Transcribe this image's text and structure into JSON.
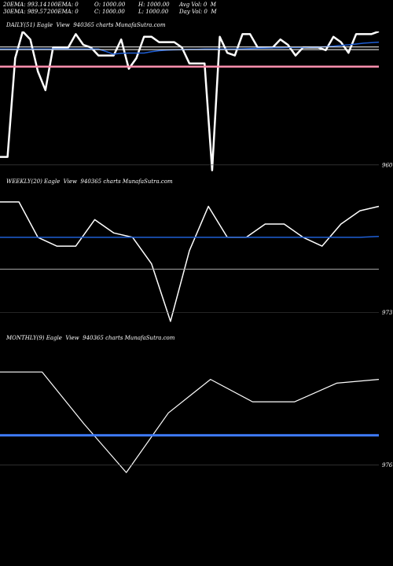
{
  "header": {
    "ema20": "20EMA: 993.14",
    "ema100": "100EMA: 0",
    "open": "O: 1000.00",
    "high": "H: 1000.00",
    "avgvol": "Avg Vol: 0  M",
    "ema30": "30EMA: 989.57",
    "ema200": "200EMA: 0",
    "close": "C: 1000.00",
    "low": "L: 1000.00",
    "dayvol": "Day Vol: 0  M"
  },
  "chart_data": [
    {
      "type": "line",
      "title": "DAILY(51) Eagle  View  940365 charts MunafaSutra.com",
      "ylim": [
        957,
        1010
      ],
      "y_tick_label": "960",
      "y_tick_value": 960,
      "series": [
        {
          "color": "#ffffff",
          "values": [
            963,
            963,
            1000,
            1010,
            1007,
            995,
            988,
            1004,
            1004,
            1004,
            1009,
            1005,
            1004,
            1001,
            1001,
            1001,
            1007,
            996,
            1000,
            1008,
            1008,
            1006,
            1006,
            1006,
            1004,
            998,
            998,
            998,
            958,
            1008,
            1002,
            1001,
            1009,
            1009,
            1004,
            1004,
            1004,
            1007,
            1005,
            1001,
            1004,
            1004,
            1004,
            1003,
            1008,
            1006,
            1002,
            1009,
            1009,
            1009,
            1010
          ]
        },
        {
          "color": "#1f5fd6",
          "values": [
            1003.4,
            1003.4,
            1003.4,
            1003.4,
            1003.4,
            1003.4,
            1003.4,
            1003.4,
            1003.4,
            1003.4,
            1003.4,
            1003.4,
            1003.4,
            1003.4,
            1002.5,
            1001.5,
            1001.8,
            1001.9,
            1001.9,
            1001.9,
            1002.4,
            1002.8,
            1003.0,
            1003.1,
            1003.2,
            1003.3,
            1003.3,
            1003.4,
            1003.4,
            1003.4,
            1003.4,
            1003.4,
            1003.5,
            1003.6,
            1003.7,
            1003.8,
            1003.9,
            1003.9,
            1004.0,
            1004.0,
            1004.0,
            1004.1,
            1004.1,
            1004.3,
            1004.5,
            1004.8,
            1005.0,
            1005.3,
            1005.6,
            1005.8,
            1006.0
          ]
        },
        {
          "color": "#ffffff",
          "values": [
            1003.2,
            1003.2,
            1003.2,
            1003.2,
            1003.2,
            1003.2,
            1003.2,
            1003.2,
            1003.2,
            1003.2,
            1003.2,
            1003.2,
            1003.2,
            1003.2,
            1003.2,
            1003.2,
            1003.2,
            1003.2,
            1003.2,
            1003.2,
            1003.2,
            1003.2,
            1003.2,
            1003.2,
            1003.2,
            1003.2,
            1003.2,
            1003.2,
            1003.2,
            1003.2,
            1003.2,
            1003.2,
            1003.2,
            1003.2,
            1003.2,
            1003.2,
            1003.2,
            1003.2,
            1003.2,
            1003.2,
            1003.2,
            1003.2,
            1003.2,
            1003.2,
            1003.2,
            1003.2,
            1003.2,
            1003.2,
            1003.2,
            1003.2,
            1003.2
          ]
        },
        {
          "color": "#ffffff",
          "values": [
            1004.2,
            1004.2,
            1004.2,
            1004.2,
            1004.2,
            1004.2,
            1004.2,
            1004.2,
            1004.2,
            1004.2,
            1004.2,
            1004.2,
            1004.2,
            1004.2,
            1004.2,
            1004.2,
            1004.2,
            1004.2,
            1004.2,
            1004.2,
            1004.2,
            1004.2,
            1004.2,
            1004.2,
            1004.2,
            1004.2,
            1004.2,
            1004.2,
            1004.2,
            1004.2,
            1004.2,
            1004.2,
            1004.2,
            1004.2,
            1004.2,
            1004.2,
            1004.2,
            1004.2,
            1004.2,
            1004.2,
            1004.2,
            1004.2,
            1004.2,
            1004.2,
            1004.2,
            1004.2,
            1004.2,
            1004.2,
            1004.2,
            1004.2,
            1004.2
          ]
        },
        {
          "color": "#ff8fae",
          "values": [
            996.8,
            996.8,
            996.8,
            996.8,
            996.8,
            996.8,
            996.8,
            996.8,
            996.8,
            996.8,
            996.8,
            996.8,
            996.8,
            996.8,
            996.8,
            996.8,
            996.8,
            996.8,
            996.8,
            996.8,
            996.8,
            996.8,
            996.8,
            996.8,
            996.8,
            996.8,
            996.8,
            996.8,
            996.8,
            996.8,
            996.8,
            996.8,
            996.8,
            996.8,
            996.8,
            996.8,
            996.8,
            996.8,
            996.8,
            996.8,
            996.8,
            996.8,
            996.8,
            996.8,
            996.8,
            996.8,
            996.8,
            996.8,
            996.8,
            996.8,
            996.8
          ]
        }
      ]
    },
    {
      "type": "line",
      "title": "WEEKLY(20) Eagle  View  940365 charts MunafaSutra.com",
      "ylim": [
        969,
        1001
      ],
      "y_tick_label": "973",
      "y_tick_value": 973,
      "series": [
        {
          "color": "#ffffff",
          "values": [
            998,
            998,
            990,
            988,
            988,
            994,
            991,
            990,
            984,
            971,
            987,
            997,
            990,
            990,
            993,
            993,
            990,
            988,
            993,
            996,
            997
          ]
        },
        {
          "color": "#1f5fd6",
          "values": [
            990,
            990,
            990,
            990,
            990,
            990,
            990,
            990,
            990,
            990,
            990,
            990,
            990,
            990,
            990,
            990,
            990,
            990,
            990,
            990,
            990.2
          ]
        },
        {
          "color": "#aaaaaa",
          "values": [
            982.8,
            982.8,
            982.8,
            982.8,
            982.8,
            982.8,
            982.8,
            982.8,
            982.8,
            982.8,
            982.8,
            982.8,
            982.8,
            982.8,
            982.8,
            982.8,
            982.8,
            982.8,
            982.8,
            982.8,
            982.8
          ]
        }
      ]
    },
    {
      "type": "line",
      "title": "MONTHLY(9) Eagle  View  940365 charts MunafaSutra.com",
      "ylim": [
        970,
        1008
      ],
      "y_tick_label": "976",
      "y_tick_value": 976,
      "series": [
        {
          "color": "#ffffff",
          "values": [
            1001,
            1001,
            987,
            974,
            990,
            999,
            993,
            993,
            998,
            999
          ]
        },
        {
          "color": "#3f7cff",
          "values": [
            984,
            984,
            984,
            984,
            984,
            984,
            984,
            984,
            984,
            984
          ]
        }
      ]
    }
  ]
}
